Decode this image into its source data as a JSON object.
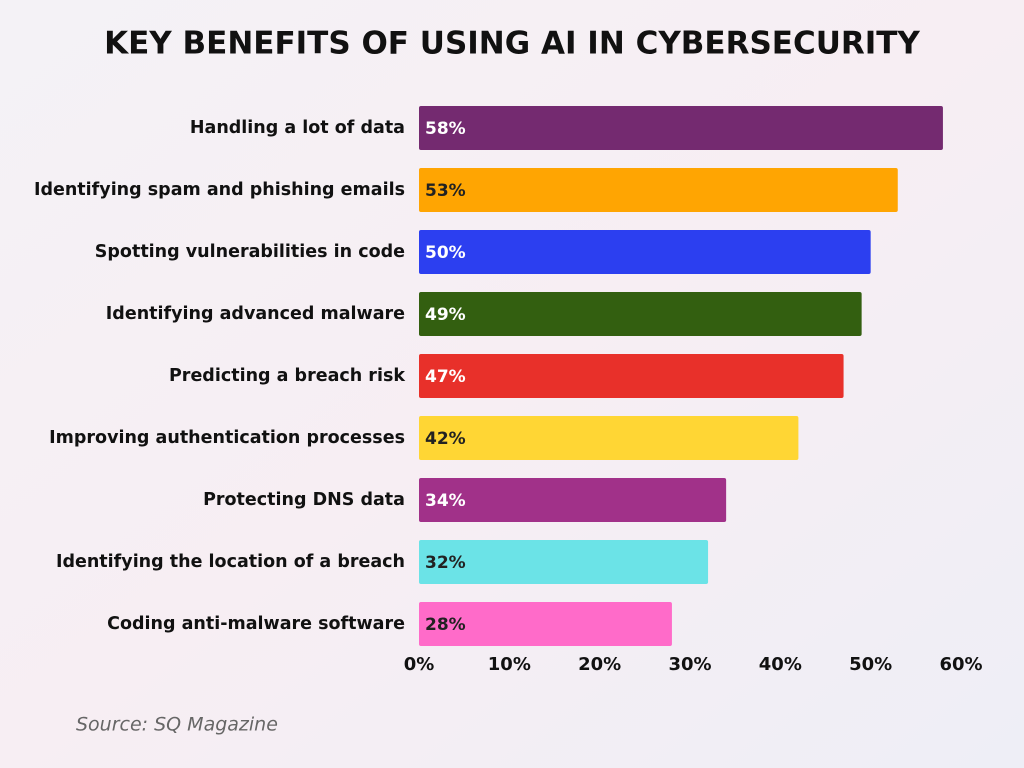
{
  "chart_data": {
    "type": "barh",
    "title": "KEY BENEFITS OF USING AI IN CYBERSECURITY",
    "categories": [
      "Handling a lot of data",
      "Identifying spam and phishing emails",
      "Spotting vulnerabilities in code",
      "Identifying advanced malware",
      "Predicting a breach risk",
      "Improving authentication processes",
      "Protecting DNS data",
      "Identifying the location of a breach",
      "Coding anti-malware software"
    ],
    "values": [
      58,
      53,
      50,
      49,
      47,
      42,
      34,
      32,
      28
    ],
    "value_labels": [
      "58%",
      "53%",
      "50%",
      "49%",
      "47%",
      "42%",
      "34%",
      "32%",
      "28%"
    ],
    "colors": [
      "#742a70",
      "#ffa502",
      "#2c3ff0",
      "#335f10",
      "#e8302a",
      "#ffd634",
      "#a13189",
      "#6be3e7",
      "#ff6bc9"
    ],
    "xlim": [
      0,
      60
    ],
    "xticks": [
      {
        "value": 0,
        "label": "0%"
      },
      {
        "value": 10,
        "label": "10%"
      },
      {
        "value": 20,
        "label": "20%"
      },
      {
        "value": 30,
        "label": "30%"
      },
      {
        "value": 40,
        "label": "40%"
      },
      {
        "value": 50,
        "label": "50%"
      },
      {
        "value": 60,
        "label": "60%"
      }
    ],
    "source": "Source: SQ Magazine"
  }
}
